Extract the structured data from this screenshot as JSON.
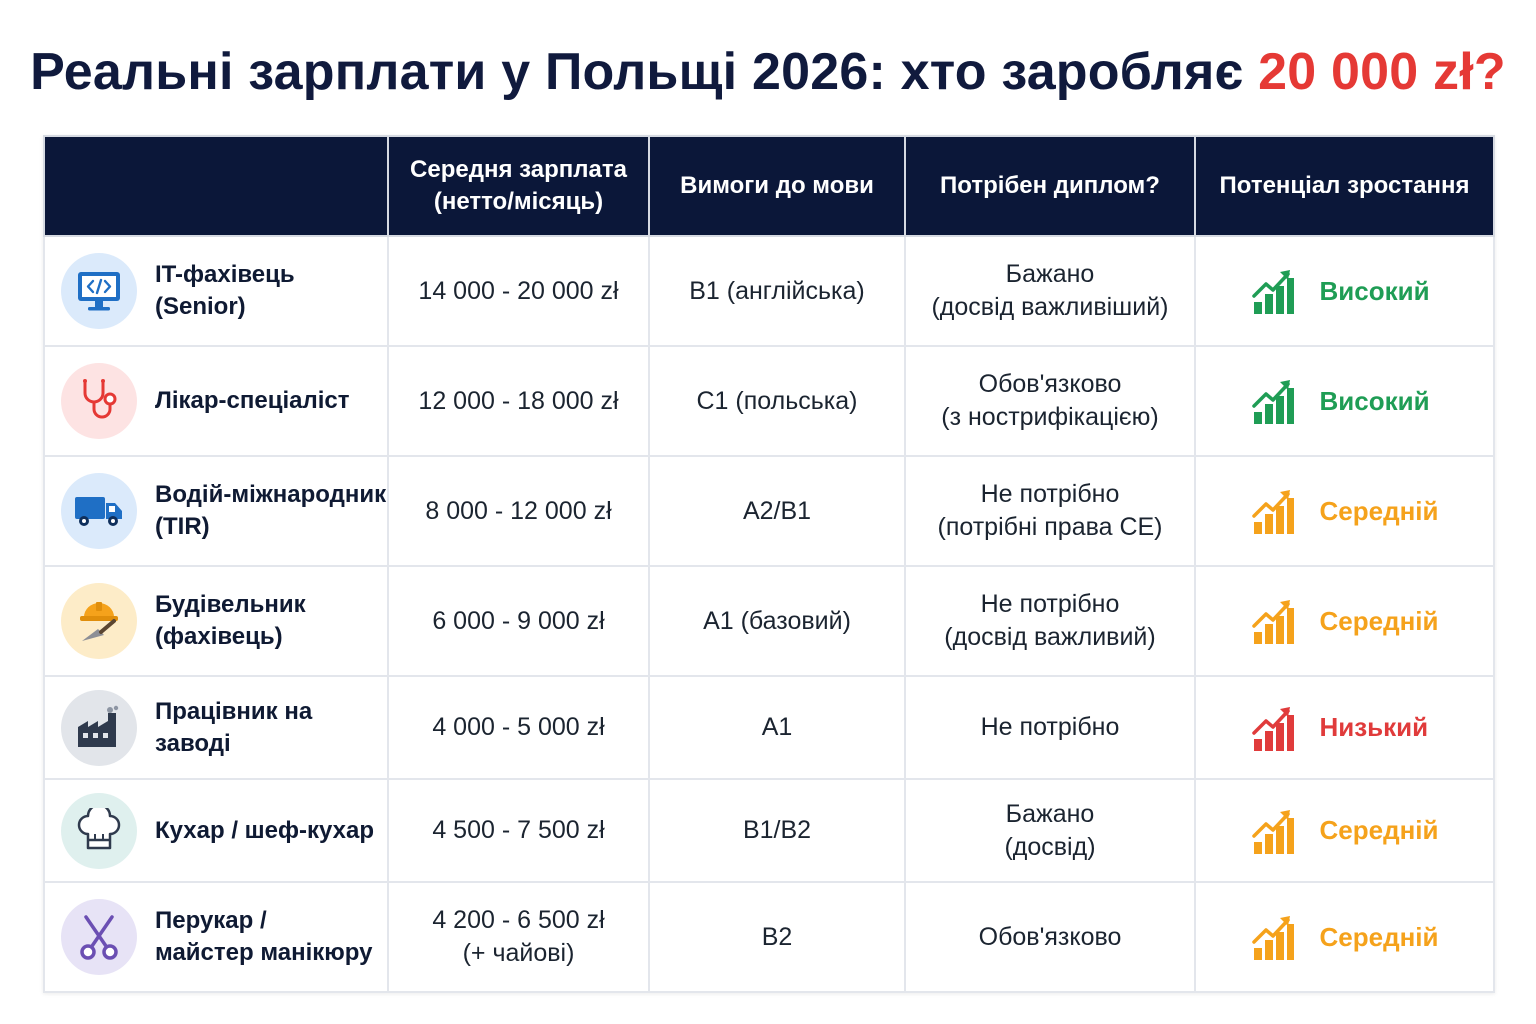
{
  "title": {
    "text": "Реальні зарплати у Польщі 2026: хто заробляє",
    "accent": "20 000 zł?"
  },
  "colors": {
    "header_bg": "#0b1739",
    "accent_red": "#e53935",
    "high": "#1f9d55",
    "medium": "#f5a21b",
    "low": "#e03b3b"
  },
  "table": {
    "headers": [
      "",
      "Середня зарплата",
      "(нетто/місяць)",
      "Вимоги до мови",
      "Потрібен диплом?",
      "Потенціал зростання"
    ],
    "rows": [
      {
        "icon": "monitor-code-icon",
        "profession": [
          "IT-фахівець",
          "(Senior)"
        ],
        "salary": [
          "14 000 - 20 000 zł"
        ],
        "language": "B1 (англійська)",
        "diploma": [
          "Бажано",
          "(досвід важливіший)"
        ],
        "growth": {
          "label": "Високий",
          "level": "high"
        }
      },
      {
        "icon": "stethoscope-icon",
        "profession": [
          "Лікар-спеціаліст"
        ],
        "salary": [
          "12 000 - 18 000 zł"
        ],
        "language": "C1 (польська)",
        "diploma": [
          "Обов'язково",
          "(з нострифікацією)"
        ],
        "growth": {
          "label": "Високий",
          "level": "high"
        }
      },
      {
        "icon": "truck-icon",
        "profession": [
          "Водій-міжнародник",
          "(TIR)"
        ],
        "salary": [
          "8 000 - 12 000 zł"
        ],
        "language": "A2/B1",
        "diploma": [
          "Не потрібно",
          "(потрібні права CE)"
        ],
        "growth": {
          "label": "Середній",
          "level": "medium"
        }
      },
      {
        "icon": "hardhat-trowel-icon",
        "profession": [
          "Будівельник",
          "(фахівець)"
        ],
        "salary": [
          "6 000 - 9 000 zł"
        ],
        "language": "A1 (базовий)",
        "diploma": [
          "Не потрібно",
          "(досвід важливий)"
        ],
        "growth": {
          "label": "Середній",
          "level": "medium"
        }
      },
      {
        "icon": "factory-icon",
        "profession": [
          "Працівник на заводі"
        ],
        "salary": [
          "4 000 - 5 000 zł"
        ],
        "language": "A1",
        "diploma": [
          "Не потрібно"
        ],
        "growth": {
          "label": "Низький",
          "level": "low"
        }
      },
      {
        "icon": "chef-hat-icon",
        "profession": [
          "Кухар / шеф-кухар"
        ],
        "salary": [
          "4 500 - 7 500 zł"
        ],
        "language": "B1/B2",
        "diploma": [
          "Бажано",
          "(досвід)"
        ],
        "growth": {
          "label": "Середній",
          "level": "medium"
        }
      },
      {
        "icon": "scissors-icon",
        "profession": [
          "Перукар /",
          "майстер манікюру"
        ],
        "salary": [
          "4 200 - 6 500 zł",
          "(+ чайові)"
        ],
        "language": "B2",
        "diploma": [
          "Обов'язково"
        ],
        "growth": {
          "label": "Середній",
          "level": "medium"
        }
      }
    ]
  }
}
